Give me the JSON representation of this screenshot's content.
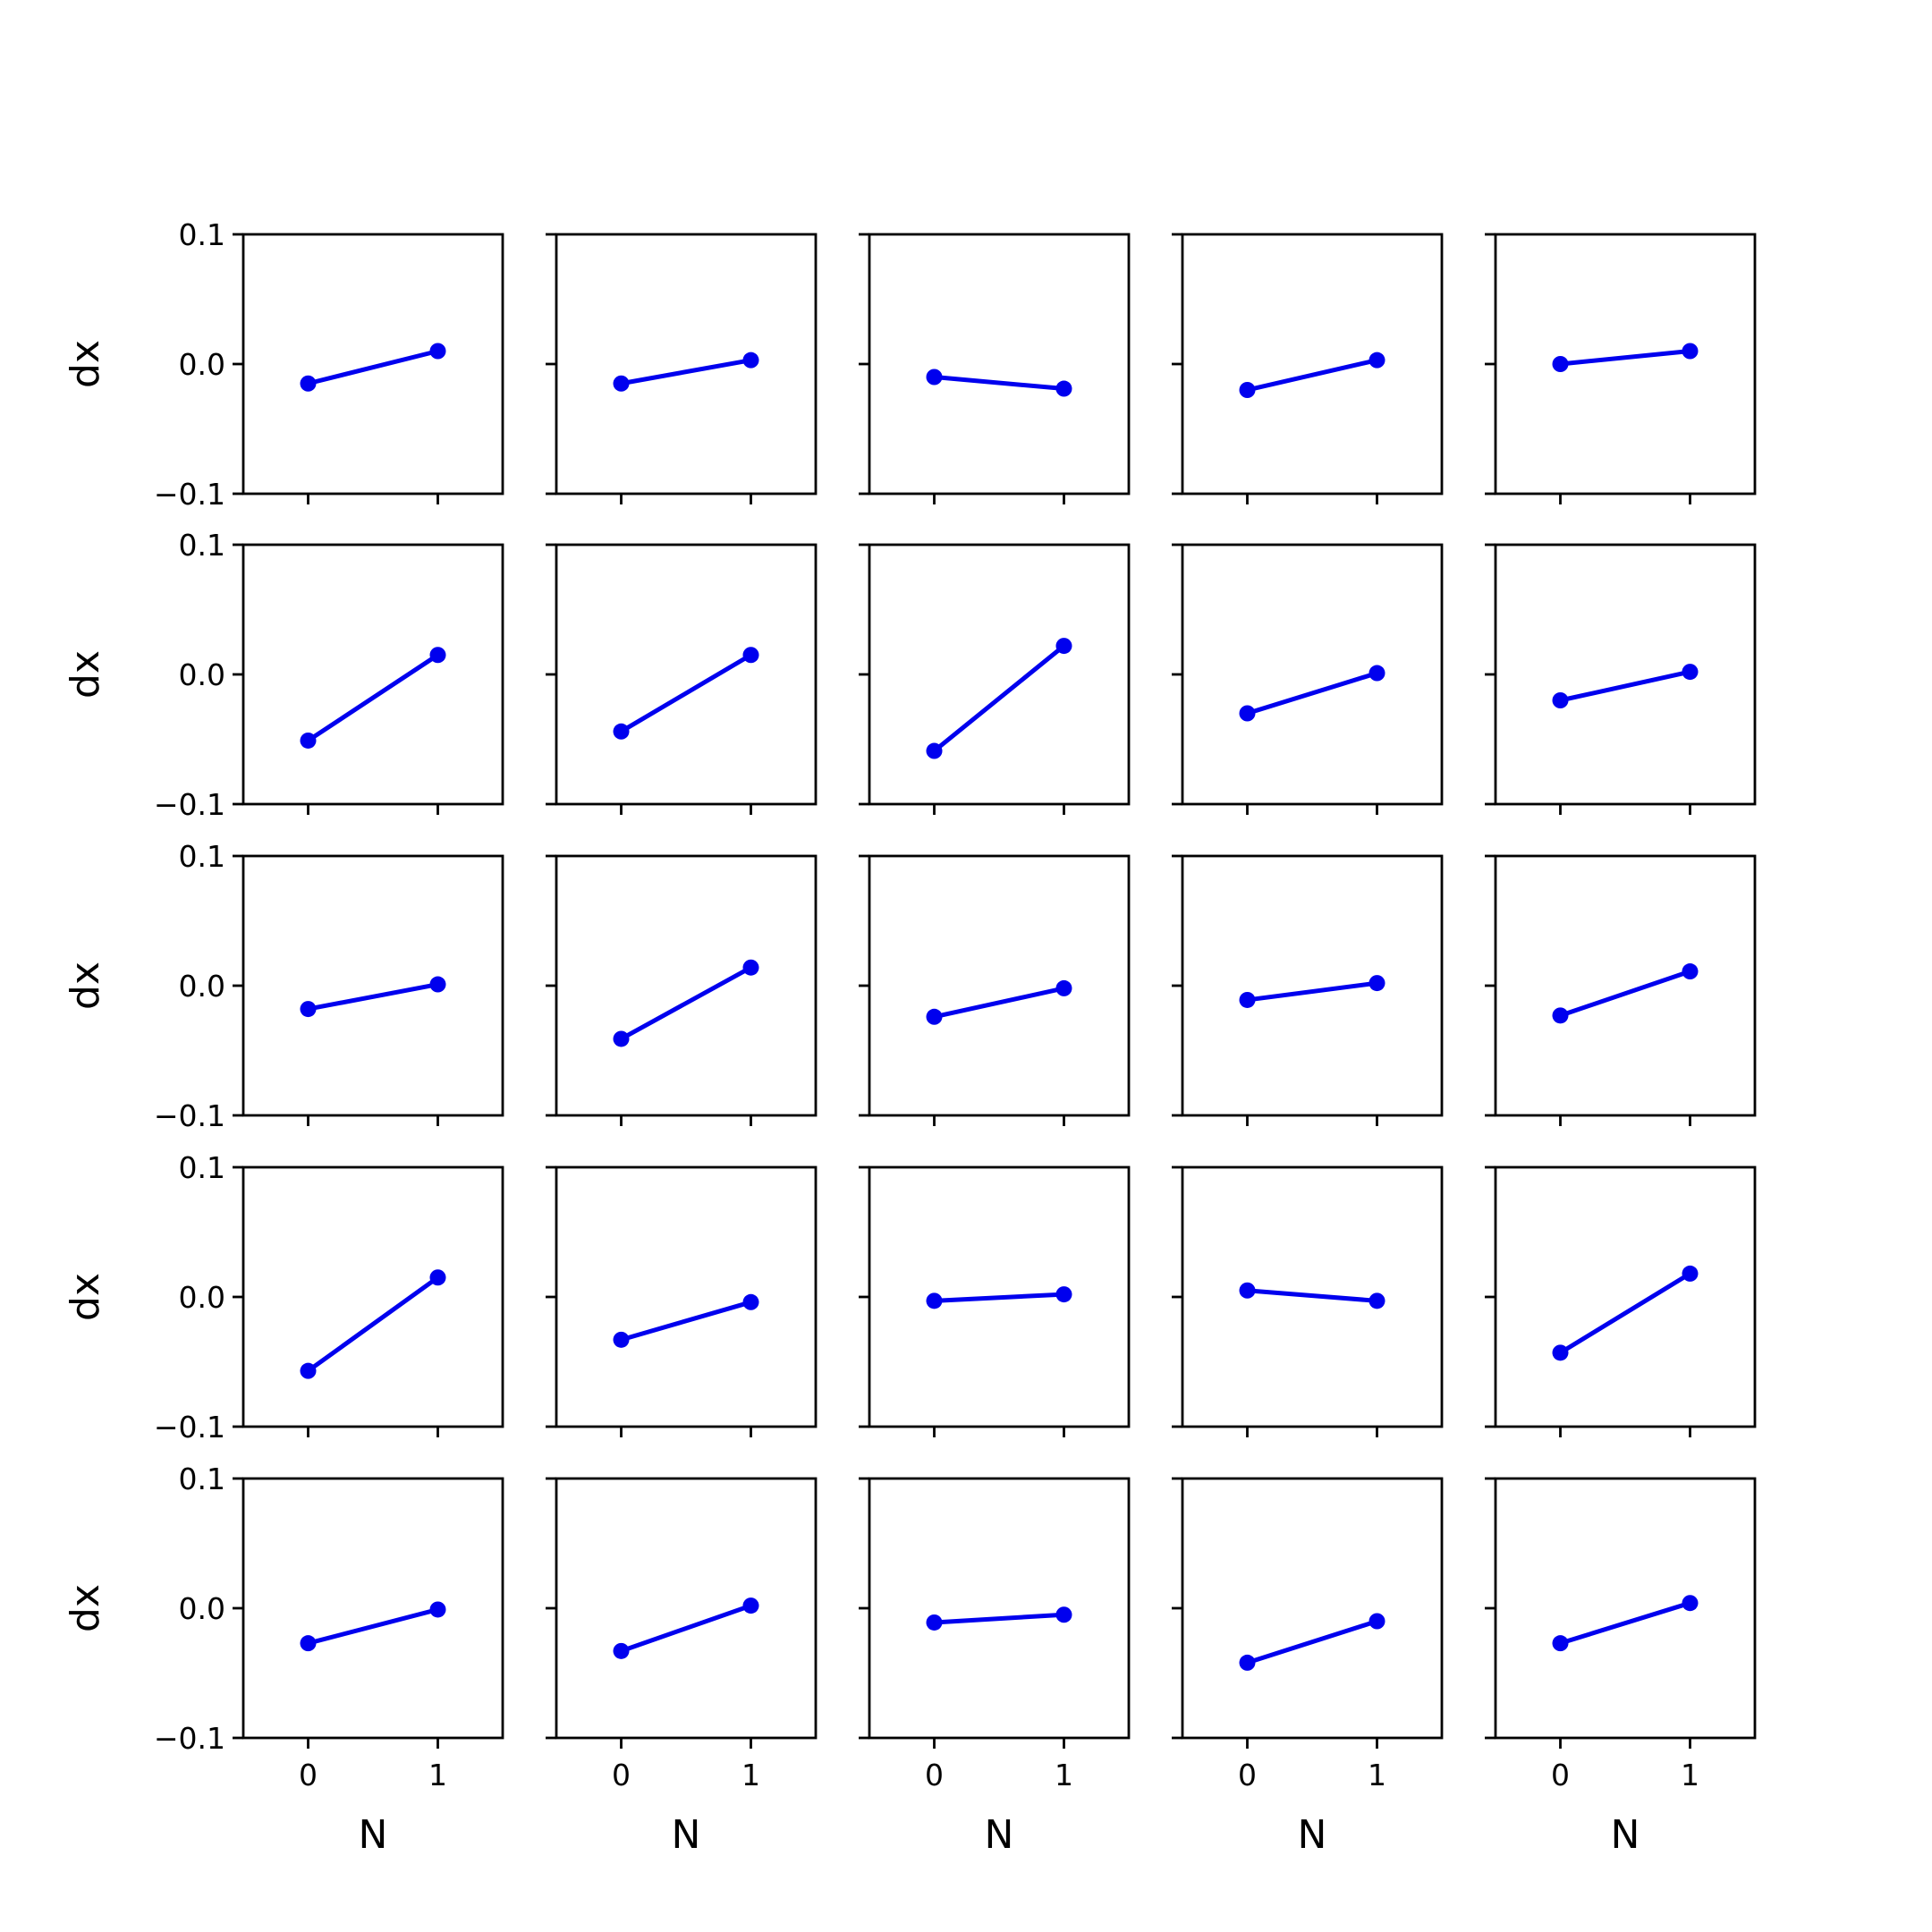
{
  "chart_data": {
    "type": "line",
    "layout": "5x5 grid of subplots",
    "x": [
      0,
      1
    ],
    "xlabel": "N",
    "ylabel": "dx",
    "xticks": [
      "0",
      "1"
    ],
    "yticks": [
      "−0.1",
      "0.0",
      "0.1"
    ],
    "ylim": [
      -0.1,
      0.1
    ],
    "xlim": [
      -0.5,
      1.5
    ],
    "grid": false,
    "line_color": "#0000ee",
    "panels": [
      [
        [
          -0.015,
          0.01
        ],
        [
          -0.015,
          0.003
        ],
        [
          -0.01,
          -0.019
        ],
        [
          -0.02,
          0.003
        ],
        [
          0.0,
          0.01
        ]
      ],
      [
        [
          -0.051,
          0.015
        ],
        [
          -0.044,
          0.015
        ],
        [
          -0.059,
          0.022
        ],
        [
          -0.03,
          0.001
        ],
        [
          -0.02,
          0.002
        ]
      ],
      [
        [
          -0.018,
          0.001
        ],
        [
          -0.041,
          0.014
        ],
        [
          -0.024,
          -0.002
        ],
        [
          -0.011,
          0.002
        ],
        [
          -0.023,
          0.011
        ]
      ],
      [
        [
          -0.057,
          0.015
        ],
        [
          -0.033,
          -0.004
        ],
        [
          -0.003,
          0.002
        ],
        [
          0.005,
          -0.003
        ],
        [
          -0.043,
          0.018
        ]
      ],
      [
        [
          -0.027,
          -0.001
        ],
        [
          -0.033,
          0.002
        ],
        [
          -0.011,
          -0.005
        ],
        [
          -0.042,
          -0.01
        ],
        [
          -0.027,
          0.004
        ]
      ]
    ]
  }
}
